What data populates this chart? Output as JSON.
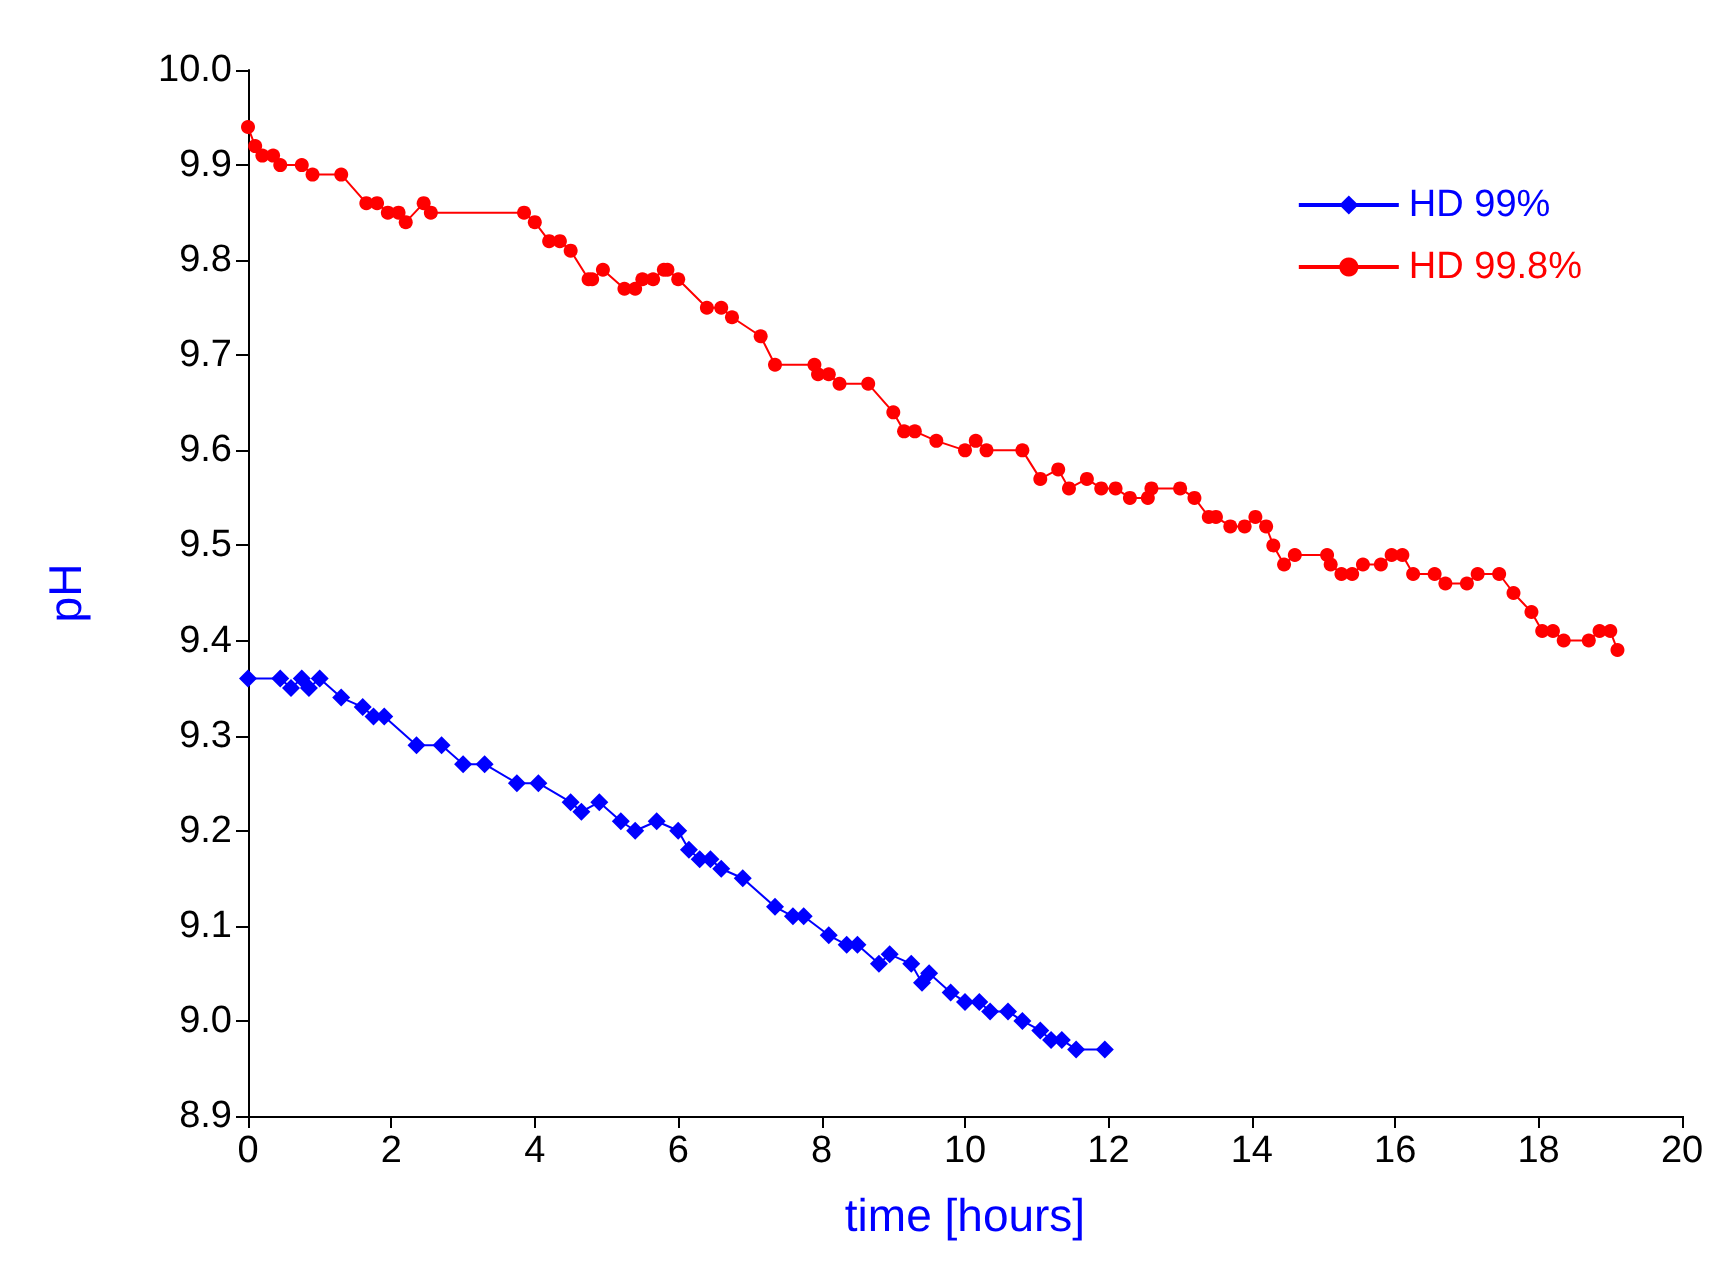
{
  "chart_data": {
    "type": "line",
    "xlabel": "time [hours]",
    "ylabel": "pH",
    "xlim": [
      0,
      20
    ],
    "xticks": [
      0,
      2,
      4,
      6,
      8,
      10,
      12,
      14,
      16,
      18,
      20
    ],
    "ylim": [
      8.9,
      10.0
    ],
    "yticks": [
      {
        "value": 8.9,
        "label": "8.9"
      },
      {
        "value": 9.0,
        "label": "9.0"
      },
      {
        "value": 9.1,
        "label": "9.1"
      },
      {
        "value": 9.2,
        "label": "9.2"
      },
      {
        "value": 9.3,
        "label": "9.3"
      },
      {
        "value": 9.4,
        "label": "9.4"
      },
      {
        "value": 9.5,
        "label": "9.5"
      },
      {
        "value": 9.6,
        "label": "9.6"
      },
      {
        "value": 9.7,
        "label": "9.7"
      },
      {
        "value": 9.8,
        "label": "9.8"
      },
      {
        "value": 9.9,
        "label": "9.9"
      },
      {
        "value": 10.0,
        "label": "10.0"
      }
    ],
    "grid": false,
    "legend": "top right",
    "line_style": "solid",
    "series": [
      {
        "name": "HD 99%",
        "color": "#0000ff",
        "marker": "diamond",
        "x": [
          0,
          0.45,
          0.6,
          0.75,
          0.85,
          1.0,
          1.3,
          1.6,
          1.75,
          1.9,
          2.35,
          2.7,
          3.0,
          3.3,
          3.75,
          4.05,
          4.5,
          4.65,
          4.9,
          5.2,
          5.4,
          5.7,
          6.0,
          6.15,
          6.3,
          6.45,
          6.6,
          6.9,
          7.35,
          7.6,
          7.75,
          8.1,
          8.35,
          8.5,
          8.8,
          8.95,
          9.25,
          9.4,
          9.5,
          9.8,
          10.0,
          10.2,
          10.35,
          10.6,
          10.8,
          11.05,
          11.2,
          11.35,
          11.55,
          11.95
        ],
        "values": [
          9.36,
          9.36,
          9.35,
          9.36,
          9.35,
          9.36,
          9.34,
          9.33,
          9.32,
          9.32,
          9.29,
          9.29,
          9.27,
          9.27,
          9.25,
          9.25,
          9.23,
          9.22,
          9.23,
          9.21,
          9.2,
          9.21,
          9.2,
          9.18,
          9.17,
          9.17,
          9.16,
          9.15,
          9.12,
          9.11,
          9.11,
          9.09,
          9.08,
          9.08,
          9.06,
          9.07,
          9.06,
          9.04,
          9.05,
          9.03,
          9.02,
          9.02,
          9.01,
          9.01,
          9.0,
          8.99,
          8.98,
          8.98,
          8.97,
          8.97
        ]
      },
      {
        "name": "HD 99.8%",
        "color": "#ff0000",
        "marker": "circle",
        "x": [
          0,
          0.1,
          0.2,
          0.35,
          0.45,
          0.75,
          0.9,
          1.3,
          1.65,
          1.8,
          1.95,
          2.1,
          2.2,
          2.45,
          2.55,
          3.85,
          4.0,
          4.2,
          4.35,
          4.5,
          4.75,
          4.8,
          4.95,
          5.25,
          5.4,
          5.5,
          5.65,
          5.8,
          5.85,
          6.0,
          6.4,
          6.6,
          6.75,
          7.15,
          7.35,
          7.9,
          7.95,
          8.1,
          8.25,
          8.65,
          9.0,
          9.15,
          9.3,
          9.6,
          10.0,
          10.15,
          10.3,
          10.8,
          11.05,
          11.3,
          11.45,
          11.7,
          11.9,
          12.1,
          12.3,
          12.55,
          12.6,
          13.0,
          13.2,
          13.4,
          13.5,
          13.7,
          13.9,
          14.05,
          14.2,
          14.3,
          14.45,
          14.6,
          15.05,
          15.1,
          15.25,
          15.4,
          15.55,
          15.8,
          15.95,
          16.1,
          16.25,
          16.55,
          16.7,
          17.0,
          17.15,
          17.45,
          17.65,
          17.9,
          18.05,
          18.2,
          18.35,
          18.7,
          18.85,
          19.0,
          19.1
        ],
        "values": [
          9.94,
          9.92,
          9.91,
          9.91,
          9.9,
          9.9,
          9.89,
          9.89,
          9.86,
          9.86,
          9.85,
          9.85,
          9.84,
          9.86,
          9.85,
          9.85,
          9.84,
          9.82,
          9.82,
          9.81,
          9.78,
          9.78,
          9.79,
          9.77,
          9.77,
          9.78,
          9.78,
          9.79,
          9.79,
          9.78,
          9.75,
          9.75,
          9.74,
          9.72,
          9.69,
          9.69,
          9.68,
          9.68,
          9.67,
          9.67,
          9.64,
          9.62,
          9.62,
          9.61,
          9.6,
          9.61,
          9.6,
          9.6,
          9.57,
          9.58,
          9.56,
          9.57,
          9.56,
          9.56,
          9.55,
          9.55,
          9.56,
          9.56,
          9.55,
          9.53,
          9.53,
          9.52,
          9.52,
          9.53,
          9.52,
          9.5,
          9.48,
          9.49,
          9.49,
          9.48,
          9.47,
          9.47,
          9.48,
          9.48,
          9.49,
          9.49,
          9.47,
          9.47,
          9.46,
          9.46,
          9.47,
          9.47,
          9.45,
          9.43,
          9.41,
          9.41,
          9.4,
          9.4,
          9.41,
          9.41,
          9.39
        ]
      }
    ]
  }
}
